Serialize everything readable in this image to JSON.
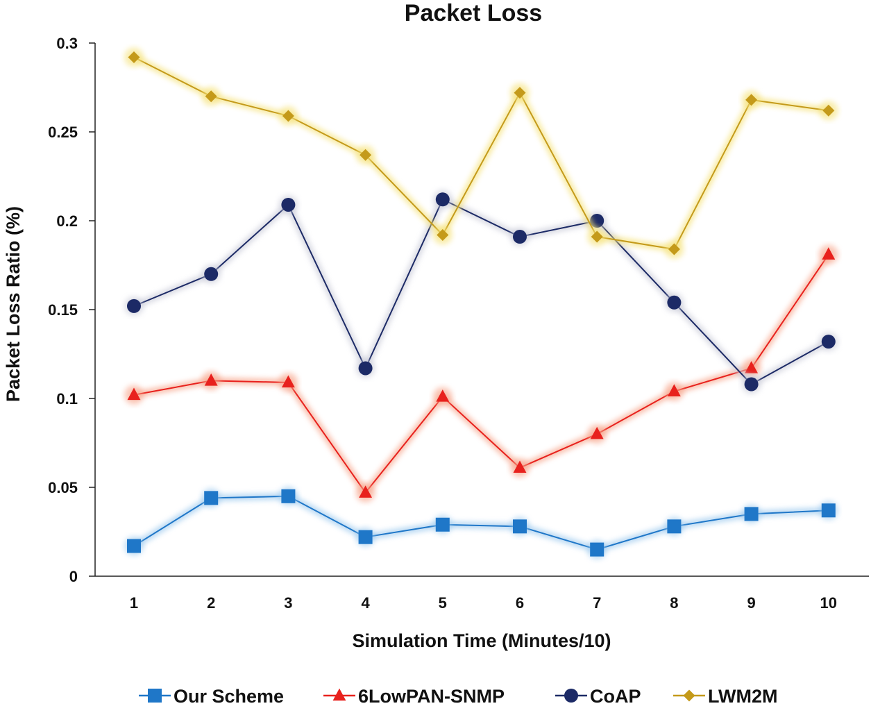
{
  "chart_data": {
    "type": "line",
    "title": "Packet Loss",
    "xlabel": "Simulation Time (Minutes/10)",
    "ylabel": "Packet Loss Ratio (%)",
    "x": [
      1,
      2,
      3,
      4,
      5,
      6,
      7,
      8,
      9,
      10
    ],
    "ylim": [
      0,
      0.3
    ],
    "yticks": [
      0,
      0.05,
      0.1,
      0.15,
      0.2,
      0.25,
      0.3
    ],
    "ytick_labels": [
      "0",
      "0.05",
      "0.1",
      "0.15",
      "0.2",
      "0.25",
      "0.3"
    ],
    "grid": false,
    "legend_position": "bottom",
    "series": [
      {
        "name": "Our Scheme",
        "marker": "square",
        "color": "#1f77c8",
        "glow": "#9cc9ee",
        "values": [
          0.017,
          0.044,
          0.045,
          0.022,
          0.029,
          0.028,
          0.015,
          0.028,
          0.035,
          0.037
        ]
      },
      {
        "name": "6LowPAN-SNMP",
        "marker": "triangle",
        "color": "#e8211d",
        "glow": "#f7a48a",
        "values": [
          0.102,
          0.11,
          0.109,
          0.047,
          0.101,
          0.061,
          0.08,
          0.104,
          0.117,
          0.181
        ]
      },
      {
        "name": "CoAP",
        "marker": "circle",
        "color": "#1c2a66",
        "glow": "#c9cbd8",
        "values": [
          0.152,
          0.17,
          0.209,
          0.117,
          0.212,
          0.191,
          0.2,
          0.154,
          0.108,
          0.132
        ]
      },
      {
        "name": "LWM2M",
        "marker": "diamond",
        "color": "#c49a1a",
        "glow": "#f5e27a",
        "values": [
          0.292,
          0.27,
          0.259,
          0.237,
          0.192,
          0.272,
          0.191,
          0.184,
          0.268,
          0.262
        ]
      }
    ]
  }
}
